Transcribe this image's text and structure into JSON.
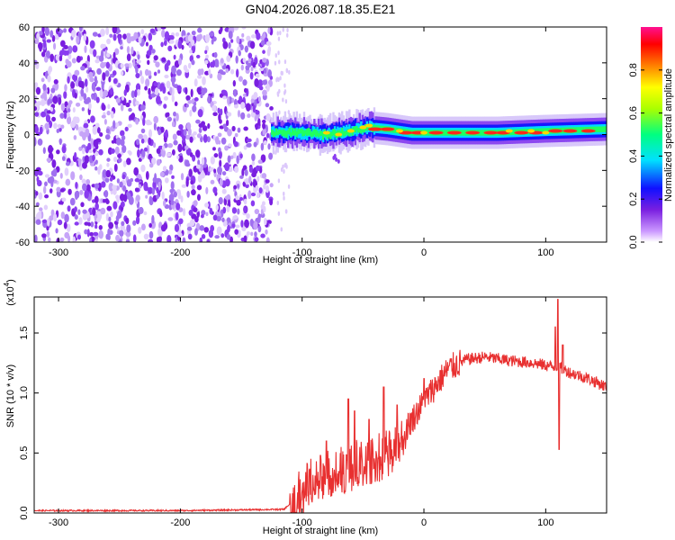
{
  "title": "GN04.2026.087.18.35.E21",
  "chart_data": [
    {
      "type": "heatmap",
      "xlabel": "Height of straight line (km)",
      "ylabel": "Frequency (Hz)",
      "xlim": [
        -320,
        150
      ],
      "ylim": [
        -60,
        60
      ],
      "x_ticks": [
        -300,
        -200,
        -100,
        0,
        100
      ],
      "y_ticks": [
        -60,
        -40,
        -20,
        0,
        20,
        40,
        60
      ],
      "colorbar": {
        "label": "Normalized spectral amplitude",
        "range": [
          0.0,
          1.0
        ],
        "ticks": [
          "0.0",
          "0.2",
          "0.4",
          "0.6",
          "0.8"
        ],
        "colormap": [
          "#ffffff",
          "#cc99ff",
          "#7a1fe0",
          "#1010ff",
          "#00e0ff",
          "#00ff80",
          "#aaff00",
          "#ffff00",
          "#ff8000",
          "#ff0000",
          "#ff1090"
        ]
      },
      "regions": [
        {
          "x_range": [
            -320,
            -125
          ],
          "y_range": [
            -60,
            60
          ],
          "description_level": 0.15
        },
        {
          "x_range": [
            -125,
            150
          ],
          "center_y": 1,
          "peak_level": 1.0
        }
      ],
      "band_center": [
        [
          -125,
          1
        ],
        [
          -100,
          1
        ],
        [
          -80,
          0
        ],
        [
          -60,
          2
        ],
        [
          -45,
          4
        ],
        [
          -30,
          3
        ],
        [
          -10,
          1
        ],
        [
          0,
          1
        ],
        [
          30,
          1
        ],
        [
          60,
          1
        ],
        [
          100,
          2
        ],
        [
          150,
          3
        ]
      ]
    },
    {
      "type": "line",
      "xlabel": "Height of straight line (km)",
      "ylabel": "SNR (10 * v/v)",
      "y_multiplier": "(x10",
      "y_multiplier_exp": "4",
      "y_multiplier_close": ")",
      "xlim": [
        -320,
        150
      ],
      "ylim": [
        0,
        1.8
      ],
      "x_ticks": [
        -300,
        -200,
        -100,
        0,
        100
      ],
      "y_ticks": [
        "0.0",
        "0.5",
        "1.0",
        "1.5"
      ],
      "series": [
        {
          "color": "#e83030",
          "envelope": [
            [
              -320,
              0.02
            ],
            [
              -200,
              0.02
            ],
            [
              -115,
              0.03
            ],
            [
              -105,
              0.12
            ],
            [
              -95,
              0.25
            ],
            [
              -85,
              0.3
            ],
            [
              -70,
              0.35
            ],
            [
              -55,
              0.42
            ],
            [
              -40,
              0.45
            ],
            [
              -25,
              0.55
            ],
            [
              -15,
              0.7
            ],
            [
              -5,
              0.85
            ],
            [
              5,
              1.0
            ],
            [
              20,
              1.2
            ],
            [
              35,
              1.28
            ],
            [
              50,
              1.3
            ],
            [
              70,
              1.27
            ],
            [
              90,
              1.25
            ],
            [
              105,
              1.22
            ],
            [
              110,
              1.22
            ],
            [
              120,
              1.17
            ],
            [
              135,
              1.12
            ],
            [
              150,
              1.05
            ]
          ],
          "spikes": [
            [
              -85,
              0.48
            ],
            [
              -80,
              0.6
            ],
            [
              -62,
              0.95
            ],
            [
              -57,
              0.85
            ],
            [
              -45,
              0.78
            ],
            [
              -33,
              1.05
            ],
            [
              -22,
              0.9
            ],
            [
              0,
              1.12
            ],
            [
              108,
              1.55
            ],
            [
              110,
              1.78
            ],
            [
              111,
              0.53
            ],
            [
              114,
              1.4
            ]
          ]
        }
      ]
    }
  ]
}
